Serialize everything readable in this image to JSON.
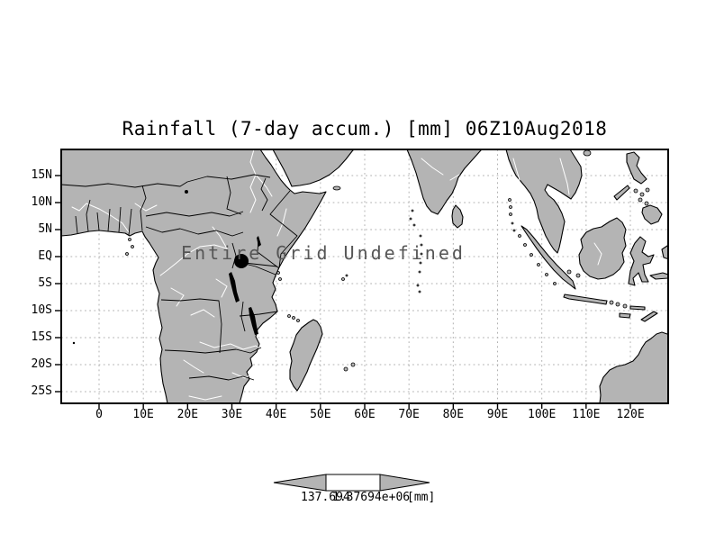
{
  "title": "Rainfall (7-day accum.) [mm] 06Z10Aug2018",
  "overlay": {
    "message": "Entire Grid Undefined"
  },
  "axes": {
    "y_ticks": [
      {
        "label": "15N",
        "lat": 15
      },
      {
        "label": "10N",
        "lat": 10
      },
      {
        "label": "5N",
        "lat": 5
      },
      {
        "label": "EQ",
        "lat": 0
      },
      {
        "label": "5S",
        "lat": -5
      },
      {
        "label": "10S",
        "lat": -10
      },
      {
        "label": "15S",
        "lat": -15
      },
      {
        "label": "20S",
        "lat": -20
      },
      {
        "label": "25S",
        "lat": -25
      }
    ],
    "x_ticks": [
      {
        "label": "0",
        "lon": 0
      },
      {
        "label": "10E",
        "lon": 10
      },
      {
        "label": "20E",
        "lon": 20
      },
      {
        "label": "30E",
        "lon": 30
      },
      {
        "label": "40E",
        "lon": 40
      },
      {
        "label": "50E",
        "lon": 50
      },
      {
        "label": "60E",
        "lon": 60
      },
      {
        "label": "70E",
        "lon": 70
      },
      {
        "label": "80E",
        "lon": 80
      },
      {
        "label": "90E",
        "lon": 90
      },
      {
        "label": "100E",
        "lon": 100
      },
      {
        "label": "110E",
        "lon": 110
      },
      {
        "label": "120E",
        "lon": 120
      }
    ]
  },
  "legend": {
    "left_value": "137.694",
    "right_value": "1.37694e+06",
    "units": "[mm]"
  },
  "colors": {
    "ink": "#000000",
    "land": "#b4b4b4",
    "grid": "#b2b2b2",
    "river": "#ffffff",
    "overlay_text": "#565656"
  },
  "chart_data": {
    "type": "heatmap",
    "title": "Rainfall (7-day accum.) [mm] 06Z10Aug2018",
    "variable": "Rainfall (7-day accumulation)",
    "units": "[mm]",
    "valid_time": "06Z10Aug2018",
    "status": "Entire Grid Undefined",
    "values": [],
    "x_axis": {
      "ticks": [
        "0",
        "10E",
        "20E",
        "30E",
        "40E",
        "50E",
        "60E",
        "70E",
        "80E",
        "90E",
        "100E",
        "110E",
        "120E"
      ],
      "range_deg_east": [
        -8.5,
        128.5
      ]
    },
    "y_axis": {
      "ticks": [
        "15N",
        "10N",
        "5N",
        "EQ",
        "5S",
        "10S",
        "15S",
        "20S",
        "25S"
      ],
      "range_deg_north": [
        -27.2,
        19.8
      ]
    },
    "grid": true,
    "legend_position": "bottom-center",
    "colorbar_labels": [
      "137.694",
      "1.37694e+06"
    ]
  }
}
